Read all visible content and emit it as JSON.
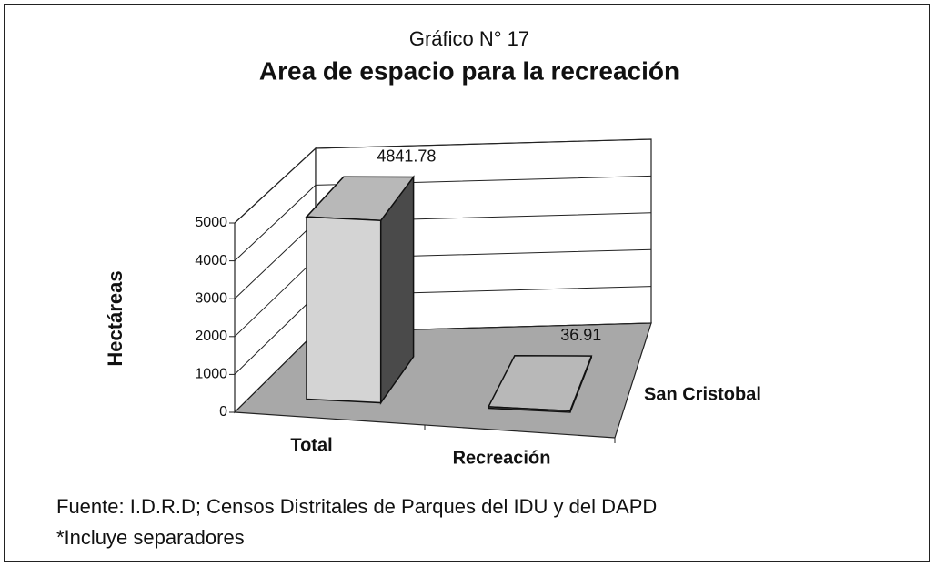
{
  "chart_data": {
    "type": "bar3d",
    "subtitle": "Gráfico N° 17",
    "title": "Area de espacio para la recreación",
    "y_label": "Hectáreas",
    "categories": [
      "Total",
      "Recreación"
    ],
    "series": [
      {
        "name": "San Cristobal",
        "color": "#d4d4d4",
        "values": [
          4841.78,
          36.91
        ]
      }
    ],
    "ylim": [
      0,
      5000
    ],
    "yticks": [
      0,
      1000,
      2000,
      3000,
      4000,
      5000
    ],
    "grid": true,
    "notes": [
      "Fuente: I.D.R.D; Censos Distritales de Parques del IDU y del DAPD",
      "*Incluye separadores"
    ]
  }
}
